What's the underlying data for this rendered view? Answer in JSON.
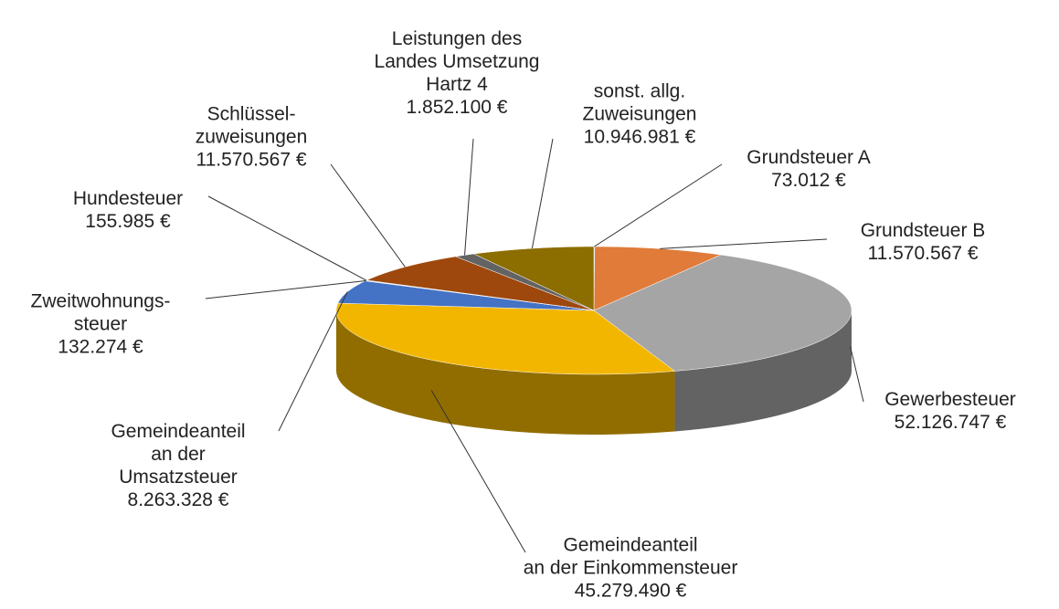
{
  "chart_data": {
    "type": "pie3d",
    "categories": [
      "Grundsteuer A",
      "Grundsteuer B",
      "Gewerbesteuer",
      "Gemeindeanteil\nan der Einkommensteuer",
      "Gemeindeanteil\nan der\nUmsatzsteuer",
      "Zweitwohnungs-\nsteuer",
      "Hundesteuer",
      "Schlüssel-\nzuweisungen",
      "Leistungen des\nLandes Umsetzung\nHartz 4",
      "sonst. allg.\nZuweisungen"
    ],
    "values": [
      73012,
      11570567,
      52126747,
      45279490,
      8263328,
      132274,
      155985,
      11570567,
      1852100,
      10946981
    ],
    "value_labels": [
      "73.012 €",
      "11.570.567 €",
      "52.126.747 €",
      "45.279.490 €",
      "8.263.328 €",
      "132.274 €",
      "155.985 €",
      "11.570.567 €",
      "1.852.100 €",
      "10.946.981 €"
    ],
    "colors": [
      "#5b9bd5",
      "#e07b39",
      "#a5a5a5",
      "#f2b600",
      "#4472c4",
      "#70ad47",
      "#264478",
      "#9e480e",
      "#636363",
      "#8c6d00"
    ]
  }
}
